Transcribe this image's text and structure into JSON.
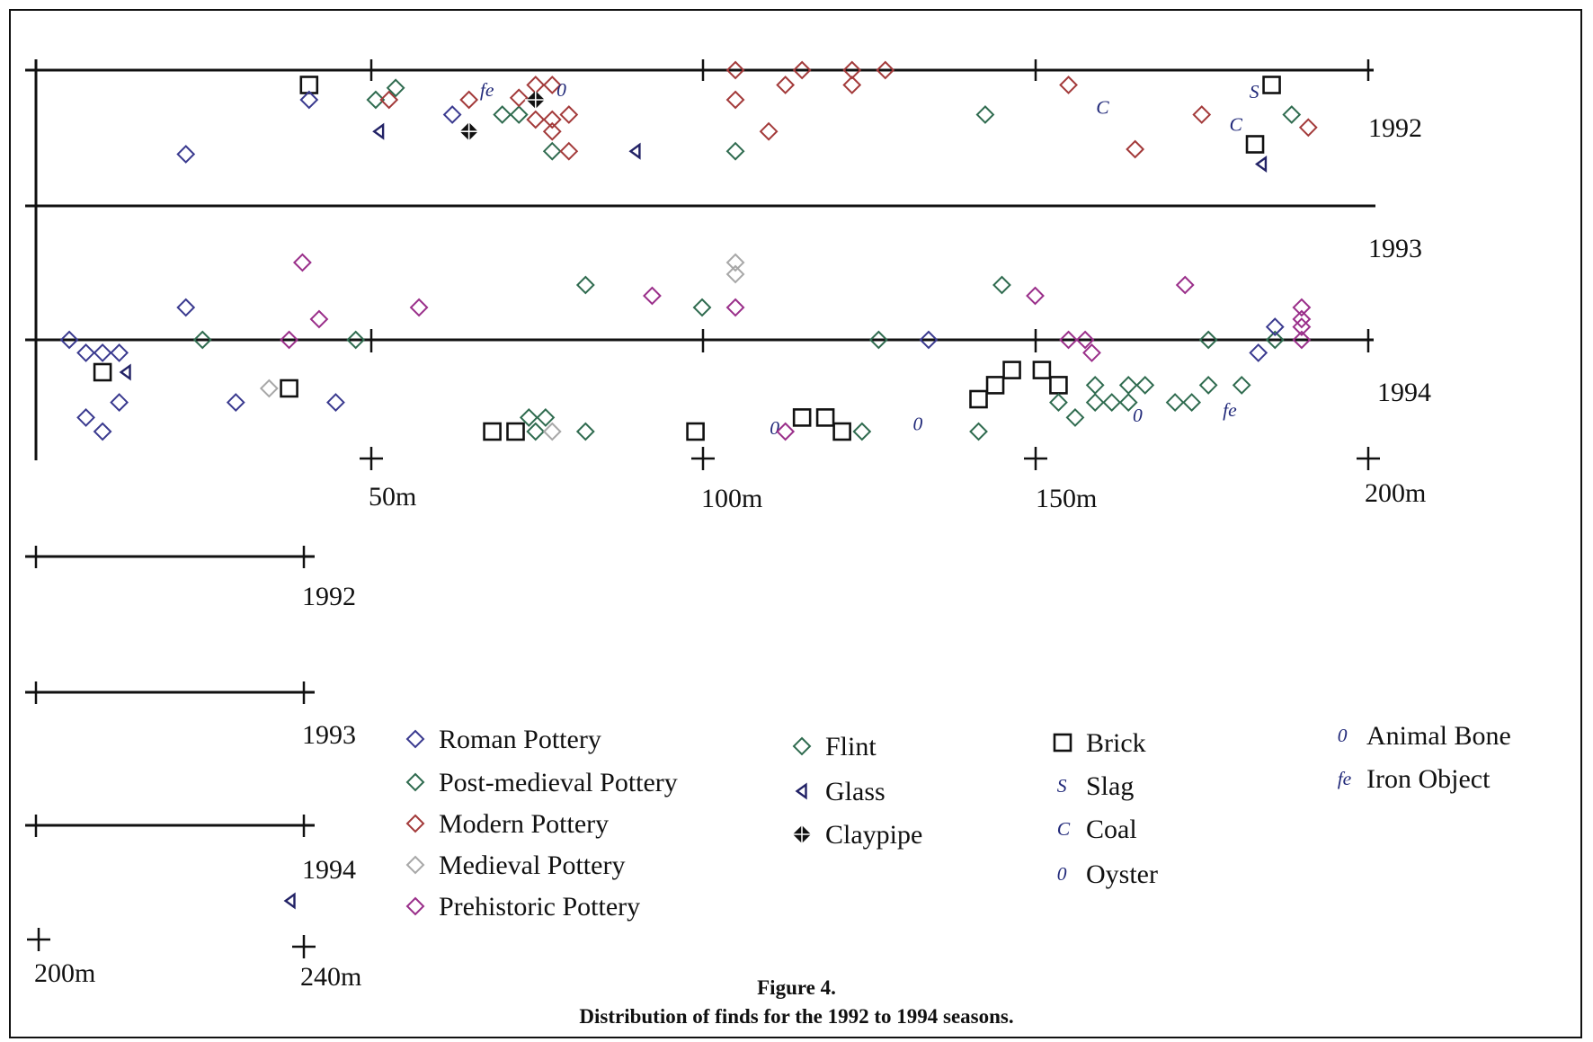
{
  "figure": {
    "caption_title": "Figure 4.",
    "caption_text": "Distribution of finds for the 1992 to 1994 seasons."
  },
  "colors": {
    "line": "#111111",
    "roman": "#3a3a8f",
    "post_medieval": "#2f6b4f",
    "modern": "#a33a3a",
    "medieval": "#a8a8a8",
    "prehistoric": "#9a2f8a",
    "flint": "#2f6b4f",
    "glass": "#222266",
    "claypipe": "#111111",
    "brick": "#111111",
    "symbol_blue": "#222a7a"
  },
  "chart_data": {
    "type": "scatter",
    "title": "Figure 4.",
    "subtitle": "Distribution of finds for the 1992 to 1994 seasons.",
    "main_section": {
      "x_range_m": [
        0,
        200
      ],
      "distance_labels": [
        "50m",
        "100m",
        "150m",
        "200m"
      ],
      "season_labels": [
        "1992",
        "1993",
        "1994"
      ]
    },
    "extension_section": {
      "x_range_m": [
        200,
        240
      ],
      "distance_labels": [
        "200m",
        "240m"
      ],
      "season_labels": [
        "1992",
        "1993",
        "1994"
      ]
    },
    "legend": [
      {
        "key": "roman",
        "label": "Roman Pottery",
        "symbol": "diamond"
      },
      {
        "key": "post_medieval",
        "label": "Post-medieval Pottery",
        "symbol": "diamond"
      },
      {
        "key": "modern",
        "label": "Modern Pottery",
        "symbol": "diamond"
      },
      {
        "key": "medieval",
        "label": "Medieval Pottery",
        "symbol": "diamond"
      },
      {
        "key": "prehistoric",
        "label": "Prehistoric Pottery",
        "symbol": "diamond"
      },
      {
        "key": "flint",
        "label": "Flint",
        "symbol": "diamond"
      },
      {
        "key": "glass",
        "label": "Glass",
        "symbol": "triangle-left"
      },
      {
        "key": "claypipe",
        "label": "Claypipe",
        "symbol": "cross-diamond"
      },
      {
        "key": "brick",
        "label": "Brick",
        "symbol": "square"
      },
      {
        "key": "slag",
        "label": "Slag",
        "symbol": "glyph",
        "glyph": "S"
      },
      {
        "key": "coal",
        "label": "Coal",
        "symbol": "glyph",
        "glyph": "C"
      },
      {
        "key": "oyster",
        "label": "Oyster",
        "symbol": "glyph",
        "glyph": "0"
      },
      {
        "key": "bone",
        "label": "Animal Bone",
        "symbol": "glyph",
        "glyph": "0"
      },
      {
        "key": "iron",
        "label": "Iron Object",
        "symbol": "glyph",
        "glyph": "fe"
      }
    ],
    "finds": [
      {
        "season": "1992",
        "type": "roman",
        "x": 45,
        "y": 0.85
      },
      {
        "season": "1992",
        "type": "brick",
        "x": 82,
        "y": 0.15
      },
      {
        "season": "1992",
        "type": "roman",
        "x": 82,
        "y": 0.3
      },
      {
        "season": "1992",
        "type": "post_medieval",
        "x": 102,
        "y": 0.3
      },
      {
        "season": "1992",
        "type": "modern",
        "x": 106,
        "y": 0.3
      },
      {
        "season": "1992",
        "type": "post_medieval",
        "x": 108,
        "y": 0.18
      },
      {
        "season": "1992",
        "type": "glass",
        "x": 103,
        "y": 0.62
      },
      {
        "season": "1992",
        "type": "roman",
        "x": 125,
        "y": 0.45
      },
      {
        "season": "1992",
        "type": "claypipe",
        "x": 130,
        "y": 0.62
      },
      {
        "season": "1992",
        "type": "modern",
        "x": 130,
        "y": 0.3
      },
      {
        "season": "1992",
        "type": "iron",
        "x": 135,
        "y": 0.2
      },
      {
        "season": "1992",
        "type": "post_medieval",
        "x": 140,
        "y": 0.45
      },
      {
        "season": "1992",
        "type": "post_medieval",
        "x": 145,
        "y": 0.45
      },
      {
        "season": "1992",
        "type": "modern",
        "x": 145,
        "y": 0.28
      },
      {
        "season": "1992",
        "type": "modern",
        "x": 150,
        "y": 0.15
      },
      {
        "season": "1992",
        "type": "claypipe",
        "x": 150,
        "y": 0.3
      },
      {
        "season": "1992",
        "type": "modern",
        "x": 155,
        "y": 0.15
      },
      {
        "season": "1992",
        "type": "modern",
        "x": 150,
        "y": 0.5
      },
      {
        "season": "1992",
        "type": "modern",
        "x": 155,
        "y": 0.5
      },
      {
        "season": "1992",
        "type": "modern",
        "x": 160,
        "y": 0.45
      },
      {
        "season": "1992",
        "type": "modern",
        "x": 155,
        "y": 0.62
      },
      {
        "season": "1992",
        "type": "post_medieval",
        "x": 155,
        "y": 0.82
      },
      {
        "season": "1992",
        "type": "modern",
        "x": 160,
        "y": 0.82
      },
      {
        "season": "1992",
        "type": "bone",
        "x": 158,
        "y": 0.2
      },
      {
        "season": "1992",
        "type": "glass",
        "x": 180,
        "y": 0.82
      },
      {
        "season": "1992",
        "type": "modern",
        "x": 210,
        "y": 0.0
      },
      {
        "season": "1992",
        "type": "modern",
        "x": 210,
        "y": 0.3
      },
      {
        "season": "1992",
        "type": "post_medieval",
        "x": 210,
        "y": 0.82
      },
      {
        "season": "1992",
        "type": "modern",
        "x": 220,
        "y": 0.62
      },
      {
        "season": "1992",
        "type": "modern",
        "x": 225,
        "y": 0.15
      },
      {
        "season": "1992",
        "type": "modern",
        "x": 230,
        "y": 0.0
      },
      {
        "season": "1992",
        "type": "modern",
        "x": 245,
        "y": 0.0
      },
      {
        "season": "1992",
        "type": "modern",
        "x": 245,
        "y": 0.15
      },
      {
        "season": "1992",
        "type": "modern",
        "x": 255,
        "y": 0.0
      },
      {
        "season": "1992",
        "type": "post_medieval",
        "x": 285,
        "y": 0.45
      },
      {
        "season": "1992",
        "type": "modern",
        "x": 310,
        "y": 0.15
      },
      {
        "season": "1992",
        "type": "coal",
        "x": 320,
        "y": 0.38
      },
      {
        "season": "1992",
        "type": "modern",
        "x": 330,
        "y": 0.8
      },
      {
        "season": "1992",
        "type": "modern",
        "x": 350,
        "y": 0.45
      },
      {
        "season": "1992",
        "type": "coal",
        "x": 360,
        "y": 0.55
      },
      {
        "season": "1992",
        "type": "slag",
        "x": 366,
        "y": 0.22
      },
      {
        "season": "1992",
        "type": "brick",
        "x": 371,
        "y": 0.15
      },
      {
        "season": "1992",
        "type": "brick",
        "x": 366,
        "y": 0.75
      },
      {
        "season": "1992",
        "type": "glass",
        "x": 368,
        "y": 0.95
      },
      {
        "season": "1992",
        "type": "post_medieval",
        "x": 377,
        "y": 0.45
      },
      {
        "season": "1992",
        "type": "modern",
        "x": 382,
        "y": 0.58
      },
      {
        "season": "1993",
        "type": "prehistoric",
        "x": 80,
        "y": 0.25
      },
      {
        "season": "1993",
        "type": "roman",
        "x": 45,
        "y": 0.75
      },
      {
        "season": "1993",
        "type": "prehistoric",
        "x": 85,
        "y": 0.88
      },
      {
        "season": "1993",
        "type": "prehistoric",
        "x": 115,
        "y": 0.75
      },
      {
        "season": "1993",
        "type": "post_medieval",
        "x": 165,
        "y": 0.5
      },
      {
        "season": "1993",
        "type": "prehistoric",
        "x": 185,
        "y": 0.62
      },
      {
        "season": "1993",
        "type": "post_medieval",
        "x": 200,
        "y": 0.75
      },
      {
        "season": "1993",
        "type": "medieval",
        "x": 210,
        "y": 0.25
      },
      {
        "season": "1993",
        "type": "medieval",
        "x": 210,
        "y": 0.38
      },
      {
        "season": "1993",
        "type": "prehistoric",
        "x": 210,
        "y": 0.75
      },
      {
        "season": "1993",
        "type": "post_medieval",
        "x": 290,
        "y": 0.5
      },
      {
        "season": "1993",
        "type": "prehistoric",
        "x": 300,
        "y": 0.62
      },
      {
        "season": "1993",
        "type": "prehistoric",
        "x": 345,
        "y": 0.5
      },
      {
        "season": "1993",
        "type": "prehistoric",
        "x": 380,
        "y": 0.75
      },
      {
        "season": "1993",
        "type": "prehistoric",
        "x": 380,
        "y": 0.88
      },
      {
        "season": "1994",
        "type": "roman",
        "x": 10,
        "y": 0.0
      },
      {
        "season": "1994",
        "type": "roman",
        "x": 15,
        "y": 0.12
      },
      {
        "season": "1994",
        "type": "roman",
        "x": 20,
        "y": 0.12
      },
      {
        "season": "1994",
        "type": "roman",
        "x": 25,
        "y": 0.12
      },
      {
        "season": "1994",
        "type": "brick",
        "x": 20,
        "y": 0.3
      },
      {
        "season": "1994",
        "type": "glass",
        "x": 27,
        "y": 0.3
      },
      {
        "season": "1994",
        "type": "roman",
        "x": 25,
        "y": 0.58
      },
      {
        "season": "1994",
        "type": "roman",
        "x": 15,
        "y": 0.72
      },
      {
        "season": "1994",
        "type": "roman",
        "x": 20,
        "y": 0.85
      },
      {
        "season": "1994",
        "type": "post_medieval",
        "x": 50,
        "y": 0.0
      },
      {
        "season": "1994",
        "type": "roman",
        "x": 60,
        "y": 0.58
      },
      {
        "season": "1994",
        "type": "medieval",
        "x": 70,
        "y": 0.45
      },
      {
        "season": "1994",
        "type": "brick",
        "x": 76,
        "y": 0.45
      },
      {
        "season": "1994",
        "type": "prehistoric",
        "x": 76,
        "y": 0.0
      },
      {
        "season": "1994",
        "type": "roman",
        "x": 90,
        "y": 0.58
      },
      {
        "season": "1994",
        "type": "post_medieval",
        "x": 96,
        "y": 0.0
      },
      {
        "season": "1994",
        "type": "brick",
        "x": 137,
        "y": 0.85
      },
      {
        "season": "1994",
        "type": "brick",
        "x": 144,
        "y": 0.85
      },
      {
        "season": "1994",
        "type": "post_medieval",
        "x": 148,
        "y": 0.72
      },
      {
        "season": "1994",
        "type": "post_medieval",
        "x": 150,
        "y": 0.85
      },
      {
        "season": "1994",
        "type": "post_medieval",
        "x": 153,
        "y": 0.72
      },
      {
        "season": "1994",
        "type": "medieval",
        "x": 155,
        "y": 0.85
      },
      {
        "season": "1994",
        "type": "post_medieval",
        "x": 165,
        "y": 0.85
      },
      {
        "season": "1994",
        "type": "brick",
        "x": 198,
        "y": 0.85
      },
      {
        "season": "1994",
        "type": "oyster",
        "x": 222,
        "y": 0.82
      },
      {
        "season": "1994",
        "type": "prehistoric",
        "x": 225,
        "y": 0.85
      },
      {
        "season": "1994",
        "type": "brick",
        "x": 230,
        "y": 0.72
      },
      {
        "season": "1994",
        "type": "brick",
        "x": 237,
        "y": 0.72
      },
      {
        "season": "1994",
        "type": "brick",
        "x": 242,
        "y": 0.85
      },
      {
        "season": "1994",
        "type": "post_medieval",
        "x": 248,
        "y": 0.85
      },
      {
        "season": "1994",
        "type": "post_medieval",
        "x": 253,
        "y": 0.0
      },
      {
        "season": "1994",
        "type": "oyster",
        "x": 265,
        "y": 0.78
      },
      {
        "season": "1994",
        "type": "roman",
        "x": 268,
        "y": 0.0
      },
      {
        "season": "1994",
        "type": "post_medieval",
        "x": 283,
        "y": 0.85
      },
      {
        "season": "1994",
        "type": "brick",
        "x": 283,
        "y": 0.55
      },
      {
        "season": "1994",
        "type": "brick",
        "x": 288,
        "y": 0.42
      },
      {
        "season": "1994",
        "type": "brick",
        "x": 293,
        "y": 0.28
      },
      {
        "season": "1994",
        "type": "brick",
        "x": 302,
        "y": 0.28
      },
      {
        "season": "1994",
        "type": "brick",
        "x": 307,
        "y": 0.42
      },
      {
        "season": "1994",
        "type": "post_medieval",
        "x": 307,
        "y": 0.58
      },
      {
        "season": "1994",
        "type": "prehistoric",
        "x": 310,
        "y": 0.0
      },
      {
        "season": "1994",
        "type": "prehistoric",
        "x": 315,
        "y": 0.0
      },
      {
        "season": "1994",
        "type": "prehistoric",
        "x": 317,
        "y": 0.12
      },
      {
        "season": "1994",
        "type": "post_medieval",
        "x": 312,
        "y": 0.72
      },
      {
        "season": "1994",
        "type": "post_medieval",
        "x": 318,
        "y": 0.42
      },
      {
        "season": "1994",
        "type": "post_medieval",
        "x": 318,
        "y": 0.58
      },
      {
        "season": "1994",
        "type": "post_medieval",
        "x": 323,
        "y": 0.58
      },
      {
        "season": "1994",
        "type": "post_medieval",
        "x": 328,
        "y": 0.42
      },
      {
        "season": "1994",
        "type": "post_medieval",
        "x": 328,
        "y": 0.58
      },
      {
        "season": "1994",
        "type": "post_medieval",
        "x": 333,
        "y": 0.42
      },
      {
        "season": "1994",
        "type": "bone",
        "x": 331,
        "y": 0.7
      },
      {
        "season": "1994",
        "type": "post_medieval",
        "x": 342,
        "y": 0.58
      },
      {
        "season": "1994",
        "type": "post_medieval",
        "x": 347,
        "y": 0.58
      },
      {
        "season": "1994",
        "type": "post_medieval",
        "x": 352,
        "y": 0.42
      },
      {
        "season": "1994",
        "type": "post_medieval",
        "x": 362,
        "y": 0.42
      },
      {
        "season": "1994",
        "type": "iron",
        "x": 358,
        "y": 0.65
      },
      {
        "season": "1994",
        "type": "post_medieval",
        "x": 352,
        "y": 0.0
      },
      {
        "season": "1994",
        "type": "roman",
        "x": 367,
        "y": 0.12
      },
      {
        "season": "1994",
        "type": "post_medieval",
        "x": 372,
        "y": 0.0
      },
      {
        "season": "1994",
        "type": "roman",
        "x": 372,
        "y": -0.12
      },
      {
        "season": "1994",
        "type": "prehistoric",
        "x": 380,
        "y": 0.0
      },
      {
        "season": "1994",
        "type": "prehistoric",
        "x": 380,
        "y": -0.12
      },
      {
        "season": "1994",
        "type": "glass",
        "x": 78,
        "y": 4.1
      }
    ]
  }
}
